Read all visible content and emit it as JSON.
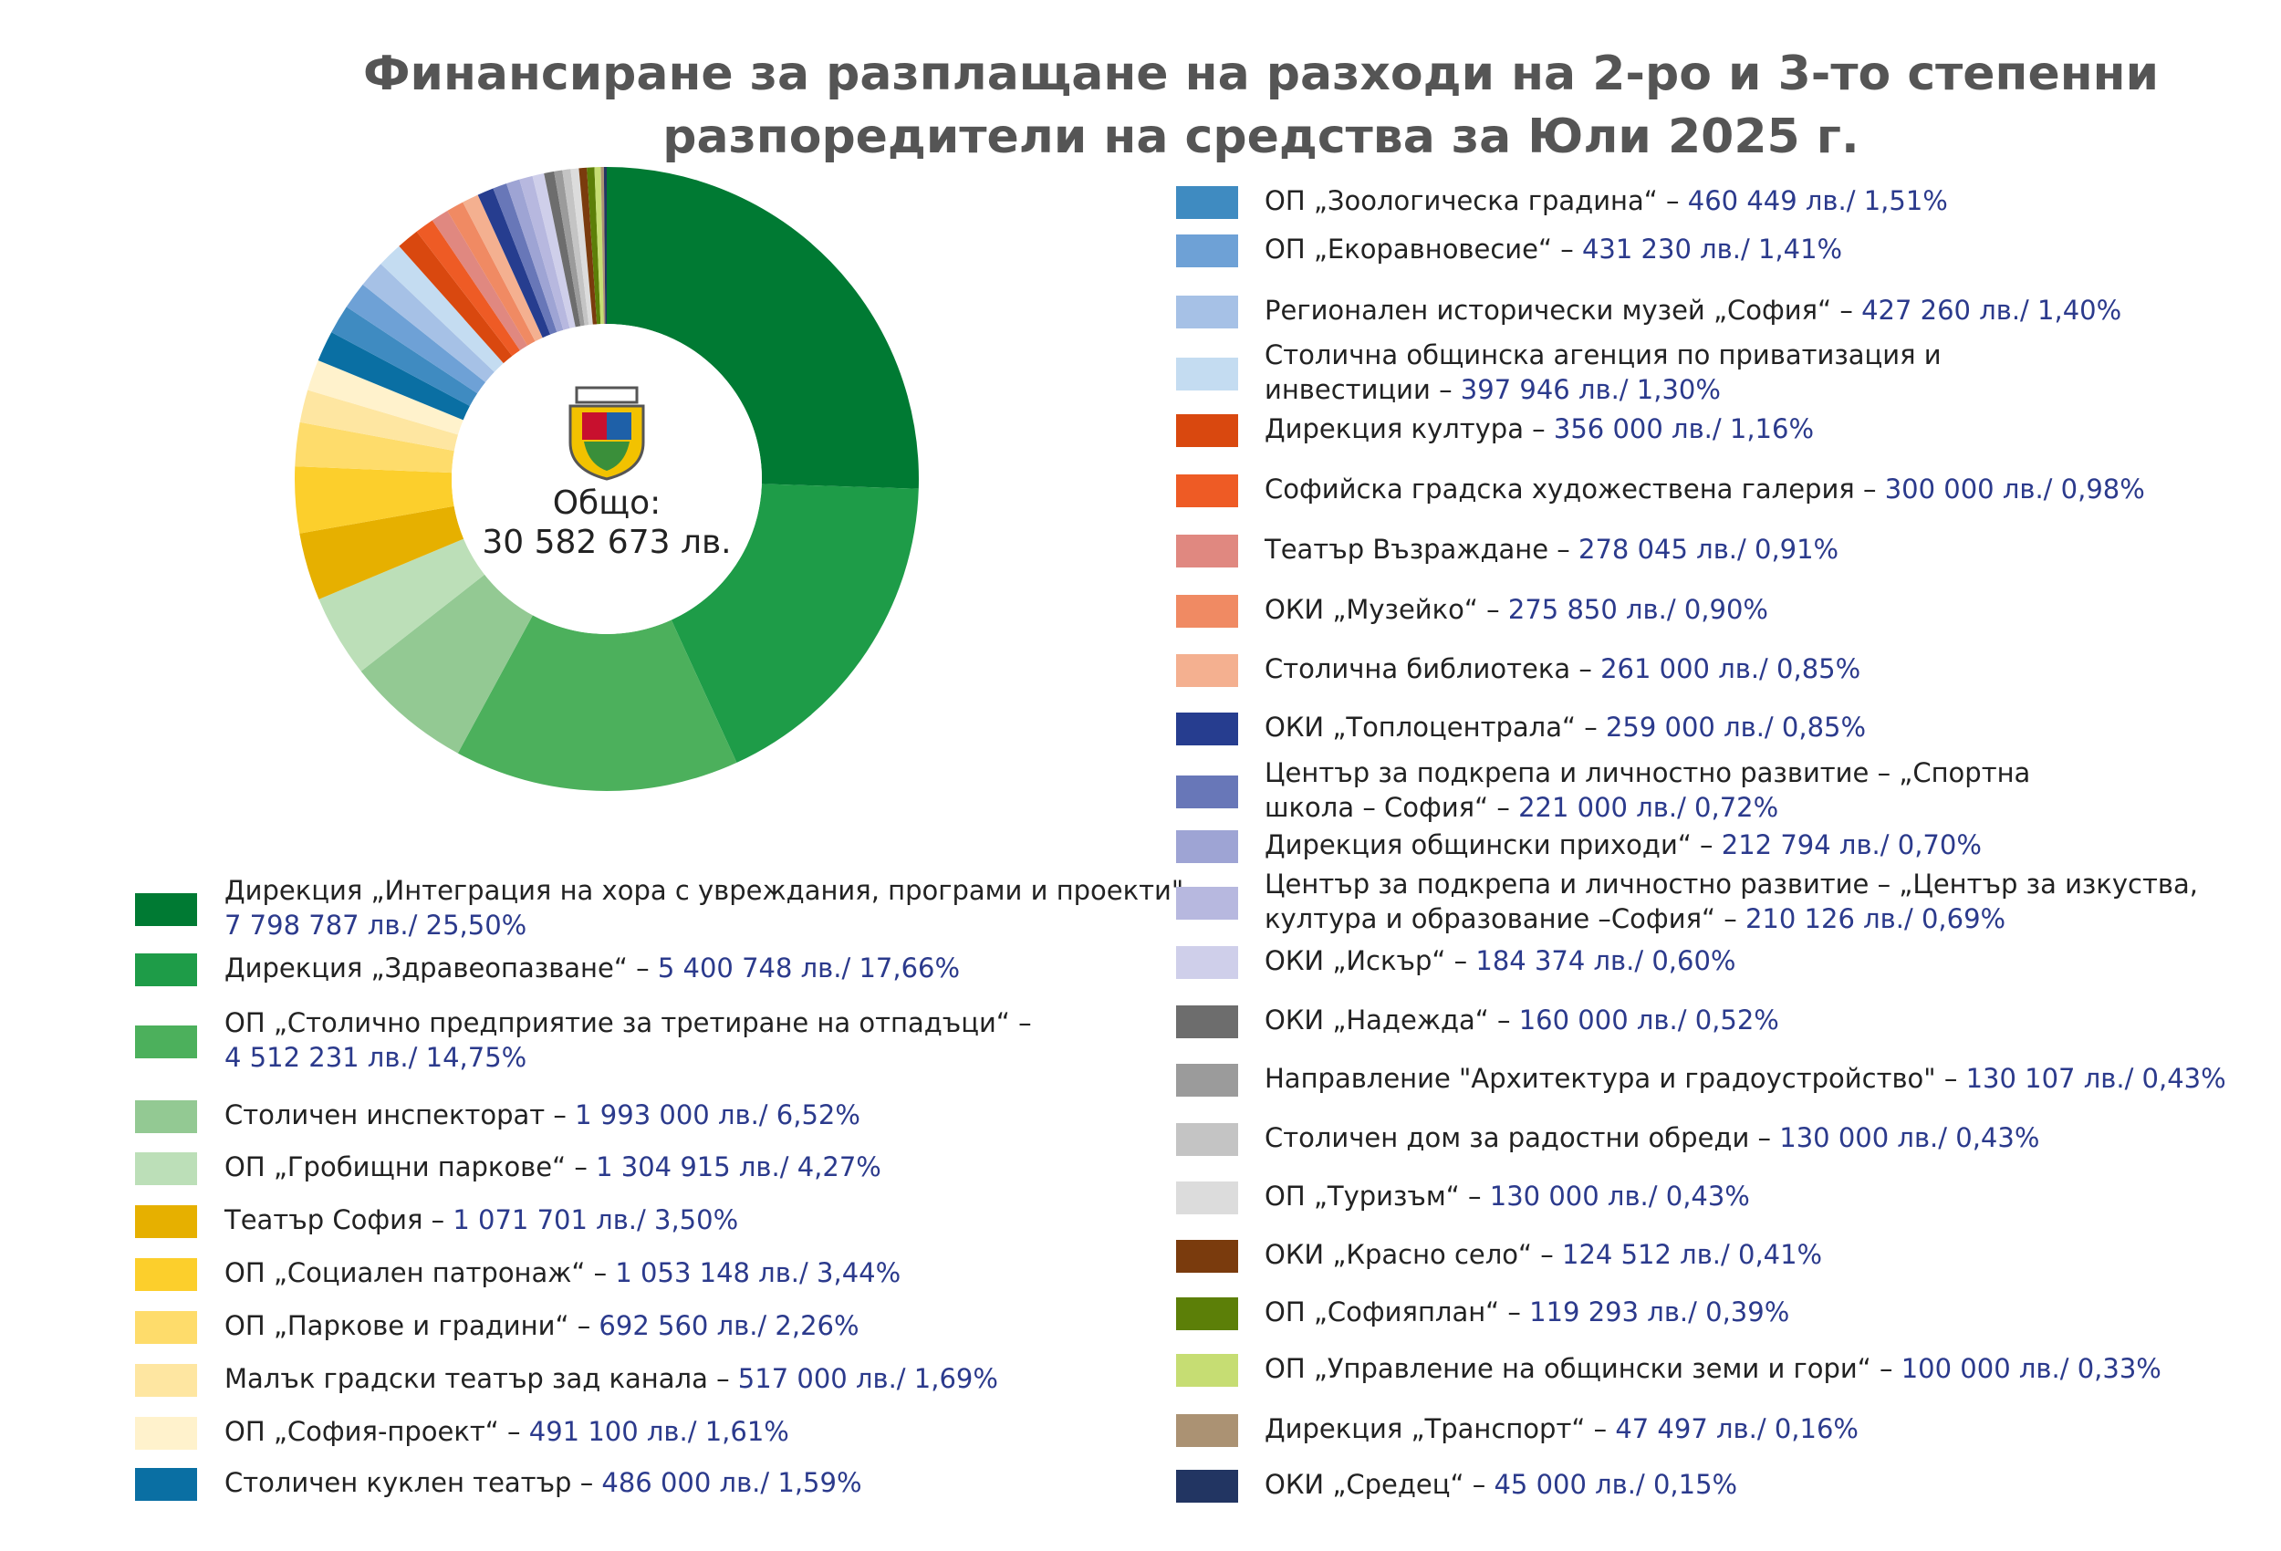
{
  "chart_data": {
    "type": "donut",
    "title": [
      "Финансиране за разплащане на разходи на 2-ро и 3-то степенни",
      "разпоредители на средства за Юли 2025 г."
    ],
    "center_label": [
      "Общо:",
      "30 582 673 лв."
    ],
    "categories": [
      [
        "Дирекция „Интеграция на хора с увреждания, програми и проекти\" –"
      ],
      "Дирекция „Здравеопазване“ –",
      [
        "ОП „Столично предприятие за третиране на отпадъци“ –"
      ],
      "Столичен инспекторат –",
      "ОП „Гробищни паркове“ –",
      "Театър София –",
      "ОП „Социален патронаж“ –",
      "ОП „Паркове и градини“ –",
      "Малък градски театър зад канала –",
      "ОП „София-проект“ –",
      "Столичен куклен театър –",
      "ОП „Зоологическа градина“ –",
      "ОП „Екоравновесие“ –",
      "Регионален исторически музей „София“ –",
      [
        "Столична общинска агенция по приватизация и",
        "инвестиции –"
      ],
      "Дирекция култура –",
      "Софийска градска художествена галерия –",
      "Театър Възраждане –",
      "ОКИ „Музейко“ –",
      "Столична библиотека –",
      "ОКИ „Топлоцентрала“ –",
      [
        "Център за подкрепа и личностно развитие – „Спортна",
        "школа – София“ –"
      ],
      "Дирекция общински приходи“ –",
      [
        "Център за подкрепа и личностно развитие – „Център за изкуства,",
        "култура и образование –София“ –"
      ],
      "ОКИ „Искър“ –",
      "ОКИ „Надежда“ –",
      "Направление \"Архитектура и градоустройство\" –",
      "Столичен дом за радостни обреди –",
      "ОП „Туризъм“ –",
      "ОКИ „Красно село“ –",
      "ОП „Софияплан“ –",
      "ОП „Управление на общински земи и гори“ –",
      "Дирекция „Транспорт“ –",
      "ОКИ „Средец“ –"
    ],
    "values": [
      7798787,
      5400748,
      4512231,
      1993000,
      1304915,
      1071701,
      1053148,
      692560,
      517000,
      491100,
      486000,
      460449,
      431230,
      427260,
      397946,
      356000,
      300000,
      278045,
      275850,
      261000,
      259000,
      221000,
      212794,
      210126,
      184374,
      160000,
      130107,
      130000,
      130000,
      124512,
      119293,
      100000,
      47497,
      45000
    ],
    "value_labels": [
      "7 798 787 лв./ 25,50%",
      "5 400 748 лв./ 17,66%",
      "4 512 231 лв./ 14,75%",
      "1 993 000 лв./ 6,52%",
      "1 304 915 лв./ 4,27%",
      "1 071 701 лв./ 3,50%",
      "1 053 148 лв./ 3,44%",
      "692 560 лв./ 2,26%",
      "517 000 лв./ 1,69%",
      "491 100 лв./ 1,61%",
      "486 000 лв./ 1,59%",
      "460 449 лв./ 1,51%",
      "431 230 лв./ 1,41%",
      "427 260 лв./ 1,40%",
      "397 946 лв./ 1,30%",
      "356 000 лв./ 1,16%",
      "300 000 лв./ 0,98%",
      "278 045 лв./ 0,91%",
      "275 850 лв./ 0,90%",
      "261 000 лв./ 0,85%",
      "259 000 лв./ 0,85%",
      "221 000 лв./ 0,72%",
      "212 794 лв./ 0,70%",
      "210 126 лв./ 0,69%",
      "184 374 лв./ 0,60%",
      "160 000 лв./ 0,52%",
      "130 107 лв./ 0,43%",
      "130 000 лв./ 0,43%",
      "130 000 лв./ 0,43%",
      "124 512 лв./ 0,41%",
      "119 293 лв./ 0,39%",
      "100 000 лв./ 0,33%",
      "47 497 лв./ 0,16%",
      "45 000 лв./ 0,15%"
    ],
    "colors": [
      "#007a33",
      "#1e9c48",
      "#4cb05c",
      "#93c993",
      "#bcdfb8",
      "#e6b000",
      "#fccf2c",
      "#fedc6b",
      "#fee6a1",
      "#fff2cc",
      "#0a6fa3",
      "#3f8bc1",
      "#6ea1d6",
      "#a6c1e6",
      "#c4dcf1",
      "#d9480f",
      "#ee5b25",
      "#e08880",
      "#f08a63",
      "#f4b090",
      "#263d8f",
      "#6877b8",
      "#9ea4d4",
      "#b7b8df",
      "#cfcfea",
      "#6d6d6d",
      "#9b9b9b",
      "#c4c4c4",
      "#dcdcdc",
      "#7a3b0d",
      "#5c7f08",
      "#c6dd73",
      "#ab9273",
      "#223562"
    ]
  }
}
